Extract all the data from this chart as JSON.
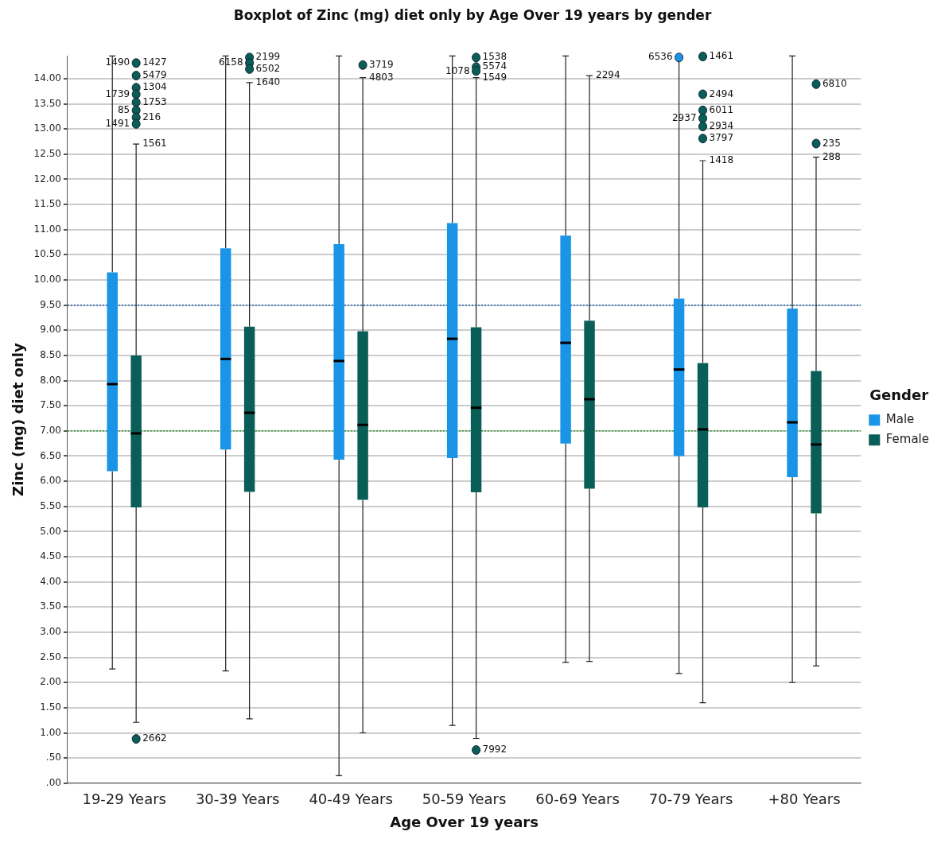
{
  "chart_data": {
    "type": "box",
    "title": "Boxplot of Zinc (mg) diet only by Age Over 19 years by gender",
    "xlabel": "Age Over 19 years",
    "ylabel": "Zinc (mg) diet only",
    "legend_title": "Gender",
    "legend": "right",
    "grid": "y",
    "categories": [
      "19-29 Years",
      "30-39 Years",
      "40-49 Years",
      "50-59 Years",
      "60-69 Years",
      "70-79 Years",
      "+80 Years"
    ],
    "ylim": [
      0,
      14.45
    ],
    "yticks": [
      {
        "value": 0,
        "label": ".00"
      },
      {
        "value": 0.5,
        "label": ".50"
      },
      {
        "value": 1,
        "label": "1.00"
      },
      {
        "value": 1.5,
        "label": "1.50"
      },
      {
        "value": 2,
        "label": "2.00"
      },
      {
        "value": 2.5,
        "label": "2.50"
      },
      {
        "value": 3,
        "label": "3.00"
      },
      {
        "value": 3.5,
        "label": "3.50"
      },
      {
        "value": 4,
        "label": "4.00"
      },
      {
        "value": 4.5,
        "label": "4.50"
      },
      {
        "value": 5,
        "label": "5.00"
      },
      {
        "value": 5.5,
        "label": "5.50"
      },
      {
        "value": 6,
        "label": "6.00"
      },
      {
        "value": 6.5,
        "label": "6.50"
      },
      {
        "value": 7,
        "label": "7.00"
      },
      {
        "value": 7.5,
        "label": "7.50"
      },
      {
        "value": 8,
        "label": "8.00"
      },
      {
        "value": 8.5,
        "label": "8.50"
      },
      {
        "value": 9,
        "label": "9.00"
      },
      {
        "value": 9.5,
        "label": "9.50"
      },
      {
        "value": 10,
        "label": "10.00"
      },
      {
        "value": 10.5,
        "label": "10.50"
      },
      {
        "value": 11,
        "label": "11.00"
      },
      {
        "value": 11.5,
        "label": "11.50"
      },
      {
        "value": 12,
        "label": "12.00"
      },
      {
        "value": 12.5,
        "label": "12.50"
      },
      {
        "value": 13,
        "label": "13.00"
      },
      {
        "value": 13.5,
        "label": "13.50"
      },
      {
        "value": 14,
        "label": "14.00"
      }
    ],
    "series": [
      {
        "name": "Male",
        "color": "#1a94e6",
        "boxes": [
          {
            "low": 2.27,
            "q1": 6.2,
            "median": 7.93,
            "q3": 10.15,
            "high": 14.45
          },
          {
            "low": 2.23,
            "q1": 6.63,
            "median": 8.43,
            "q3": 10.63,
            "high": 14.45
          },
          {
            "low": 0.15,
            "q1": 6.43,
            "median": 8.39,
            "q3": 10.71,
            "high": 14.45
          },
          {
            "low": 1.15,
            "q1": 6.46,
            "median": 8.83,
            "q3": 11.13,
            "high": 14.45
          },
          {
            "low": 2.4,
            "q1": 6.75,
            "median": 8.75,
            "q3": 10.88,
            "high": 14.45
          },
          {
            "low": 2.18,
            "q1": 6.5,
            "median": 8.22,
            "q3": 9.63,
            "high": 14.45,
            "outliers": [
              14.42
            ]
          },
          {
            "low": 2.0,
            "q1": 6.08,
            "median": 7.17,
            "q3": 9.43,
            "high": 14.45
          }
        ]
      },
      {
        "name": "Female",
        "color": "#0a5e58",
        "boxes": [
          {
            "low": 1.21,
            "q1": 5.48,
            "median": 6.95,
            "q3": 8.5,
            "high": 12.7,
            "outliers": [
              14.31,
              14.06,
              13.82,
              13.69,
              13.53,
              13.37,
              13.23,
              13.1,
              0.88
            ]
          },
          {
            "low": 1.28,
            "q1": 5.79,
            "median": 7.36,
            "q3": 9.07,
            "high": 13.92,
            "outliers": [
              14.42,
              14.31,
              14.19
            ]
          },
          {
            "low": 1.0,
            "q1": 5.63,
            "median": 7.12,
            "q3": 8.98,
            "high": 14.02,
            "outliers": [
              14.27
            ]
          },
          {
            "low": 0.89,
            "q1": 5.78,
            "median": 7.46,
            "q3": 9.06,
            "high": 14.02,
            "outliers": [
              14.42,
              14.23,
              14.15,
              0.66
            ]
          },
          {
            "low": 2.42,
            "q1": 5.85,
            "median": 7.63,
            "q3": 9.19,
            "high": 14.06
          },
          {
            "low": 1.6,
            "q1": 5.48,
            "median": 7.03,
            "q3": 8.35,
            "high": 12.37,
            "outliers": [
              14.44,
              13.69,
              13.37,
              13.21,
              13.05,
              12.81
            ]
          },
          {
            "low": 2.33,
            "q1": 5.36,
            "median": 6.73,
            "q3": 8.19,
            "high": 12.44,
            "outliers": [
              13.89,
              12.71
            ]
          }
        ]
      }
    ],
    "ref_lines": [
      {
        "axis": "y",
        "value": 9.5,
        "color": "#1f5fb5",
        "line_style": "dotted"
      },
      {
        "axis": "y",
        "value": 7.0,
        "color": "#2f9a2f",
        "line_style": "dotted"
      }
    ],
    "annotations": [
      "1427",
      "5479",
      "1304",
      "1739",
      "1753",
      "85",
      "216",
      "1491",
      "2662",
      "2199",
      "6158",
      "6502",
      "3719",
      "1538",
      "5574",
      "1078",
      "7992",
      "6536",
      "1461",
      "2494",
      "6011",
      "2937",
      "2934",
      "3797",
      "6810",
      "235",
      "1561",
      "1640",
      "4803",
      "1549",
      "2294",
      "1418",
      "288",
      "1490"
    ]
  }
}
